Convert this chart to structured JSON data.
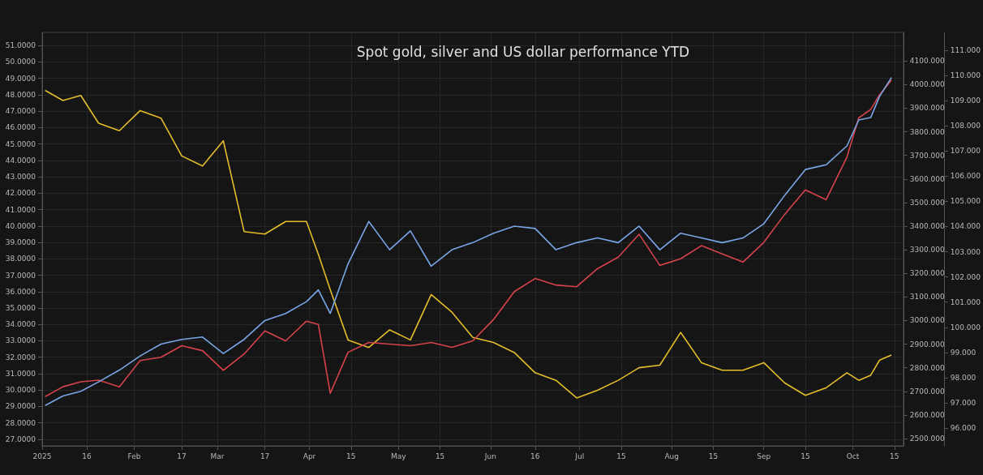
{
  "chart_data": {
    "type": "line",
    "title": "Spot gold, silver and US dollar performance YTD",
    "grid": true,
    "x": [
      "2025-01-02",
      "2025-01-08",
      "2025-01-14",
      "2025-01-20",
      "2025-01-27",
      "2025-02-03",
      "2025-02-10",
      "2025-02-17",
      "2025-02-24",
      "2025-03-03",
      "2025-03-10",
      "2025-03-17",
      "2025-03-24",
      "2025-03-31",
      "2025-04-04",
      "2025-04-08",
      "2025-04-14",
      "2025-04-21",
      "2025-04-28",
      "2025-05-05",
      "2025-05-12",
      "2025-05-19",
      "2025-05-26",
      "2025-06-02",
      "2025-06-09",
      "2025-06-16",
      "2025-06-23",
      "2025-06-30",
      "2025-07-07",
      "2025-07-14",
      "2025-07-21",
      "2025-07-28",
      "2025-08-04",
      "2025-08-11",
      "2025-08-18",
      "2025-08-25",
      "2025-09-01",
      "2025-09-08",
      "2025-09-15",
      "2025-09-22",
      "2025-09-29",
      "2025-10-03",
      "2025-10-07",
      "2025-10-10",
      "2025-10-14"
    ],
    "xlim": [
      "2025-01-01",
      "2025-10-18"
    ],
    "xticks": [
      {
        "value": "2025-01-01",
        "label": "2025"
      },
      {
        "value": "2025-01-16",
        "label": "16"
      },
      {
        "value": "2025-02-01",
        "label": "Feb"
      },
      {
        "value": "2025-02-17",
        "label": "17"
      },
      {
        "value": "2025-03-01",
        "label": "Mar"
      },
      {
        "value": "2025-03-17",
        "label": "17"
      },
      {
        "value": "2025-04-01",
        "label": "Apr"
      },
      {
        "value": "2025-04-15",
        "label": "15"
      },
      {
        "value": "2025-05-01",
        "label": "May"
      },
      {
        "value": "2025-05-15",
        "label": "15"
      },
      {
        "value": "2025-06-01",
        "label": "Jun"
      },
      {
        "value": "2025-06-16",
        "label": "16"
      },
      {
        "value": "2025-07-01",
        "label": "Jul"
      },
      {
        "value": "2025-07-15",
        "label": "15"
      },
      {
        "value": "2025-08-01",
        "label": "Aug"
      },
      {
        "value": "2025-08-15",
        "label": "15"
      },
      {
        "value": "2025-09-01",
        "label": "Sep"
      },
      {
        "value": "2025-09-15",
        "label": "15"
      },
      {
        "value": "2025-10-01",
        "label": "Oct"
      },
      {
        "value": "2025-10-15",
        "label": "15"
      }
    ],
    "ylim": [
      26.6,
      51.8
    ],
    "yticks": [
      {
        "value": 27,
        "label": "27.0000"
      },
      {
        "value": 28,
        "label": "28.0000"
      },
      {
        "value": 29,
        "label": "29.0000"
      },
      {
        "value": 30,
        "label": "30.0000"
      },
      {
        "value": 31,
        "label": "31.0000"
      },
      {
        "value": 32,
        "label": "32.0000"
      },
      {
        "value": 33,
        "label": "33.0000"
      },
      {
        "value": 34,
        "label": "34.0000"
      },
      {
        "value": 35,
        "label": "35.0000"
      },
      {
        "value": 36,
        "label": "36.0000"
      },
      {
        "value": 37,
        "label": "37.0000"
      },
      {
        "value": 38,
        "label": "38.0000"
      },
      {
        "value": 39,
        "label": "39.0000"
      },
      {
        "value": 40,
        "label": "40.0000"
      },
      {
        "value": 41,
        "label": "41.0000"
      },
      {
        "value": 42,
        "label": "42.0000"
      },
      {
        "value": 43,
        "label": "43.0000"
      },
      {
        "value": 44,
        "label": "44.0000"
      },
      {
        "value": 45,
        "label": "45.0000"
      },
      {
        "value": 46,
        "label": "46.0000"
      },
      {
        "value": 47,
        "label": "47.0000"
      },
      {
        "value": 48,
        "label": "48.0000"
      },
      {
        "value": 49,
        "label": "49.0000"
      },
      {
        "value": 50,
        "label": "50.0000"
      },
      {
        "value": 51,
        "label": "51.0000"
      }
    ],
    "y2lim": [
      2469,
      4221
    ],
    "y2ticks": [
      {
        "value": 2500,
        "label": "2500.000"
      },
      {
        "value": 2600,
        "label": "2600.000"
      },
      {
        "value": 2700,
        "label": "2700.000"
      },
      {
        "value": 2800,
        "label": "2800.000"
      },
      {
        "value": 2900,
        "label": "2900.000"
      },
      {
        "value": 3000,
        "label": "3000.000"
      },
      {
        "value": 3100,
        "label": "3100.000"
      },
      {
        "value": 3200,
        "label": "3200.000"
      },
      {
        "value": 3300,
        "label": "3300.000"
      },
      {
        "value": 3400,
        "label": "3400.000"
      },
      {
        "value": 3500,
        "label": "3500.000"
      },
      {
        "value": 3600,
        "label": "3600.000"
      },
      {
        "value": 3700,
        "label": "3700.000"
      },
      {
        "value": 3800,
        "label": "3800.000"
      },
      {
        "value": 3900,
        "label": "3900.000"
      },
      {
        "value": 4000,
        "label": "4000.000"
      },
      {
        "value": 4100,
        "label": "4100.000"
      }
    ],
    "y3lim": [
      95.3,
      111.7
    ],
    "y3ticks": [
      {
        "value": 96,
        "label": "96.000"
      },
      {
        "value": 97,
        "label": "97.000"
      },
      {
        "value": 98,
        "label": "98.000"
      },
      {
        "value": 99,
        "label": "99.000"
      },
      {
        "value": 100,
        "label": "100.000"
      },
      {
        "value": 101,
        "label": "101.000"
      },
      {
        "value": 102,
        "label": "102.000"
      },
      {
        "value": 103,
        "label": "103.000"
      },
      {
        "value": 104,
        "label": "104.000"
      },
      {
        "value": 105,
        "label": "105.000"
      },
      {
        "value": 106,
        "label": "106.000"
      },
      {
        "value": 107,
        "label": "107.000"
      },
      {
        "value": 108,
        "label": "108.000"
      },
      {
        "value": 109,
        "label": "109.000"
      },
      {
        "value": 110,
        "label": "110.000"
      },
      {
        "value": 111,
        "label": "111.000"
      }
    ],
    "series": [
      {
        "color": "#e3bd2a",
        "axis": "y3",
        "values": [
          109.4,
          109.0,
          109.2,
          108.1,
          107.8,
          108.6,
          108.3,
          106.8,
          106.4,
          107.4,
          103.8,
          103.7,
          104.2,
          104.2,
          102.9,
          101.5,
          99.5,
          99.2,
          99.9,
          99.5,
          101.3,
          100.6,
          99.6,
          99.4,
          99.0,
          98.2,
          97.9,
          97.2,
          97.5,
          97.9,
          98.4,
          98.5,
          99.8,
          98.6,
          98.3,
          98.3,
          98.6,
          97.8,
          97.3,
          97.6,
          98.2,
          97.9,
          98.1,
          98.7,
          98.9
        ]
      },
      {
        "color": "#d6434c",
        "axis": "y",
        "values": [
          29.6,
          30.2,
          30.5,
          30.6,
          30.2,
          31.8,
          32.0,
          32.7,
          32.4,
          31.2,
          32.2,
          33.6,
          33.0,
          34.2,
          34.0,
          29.8,
          32.3,
          32.9,
          32.8,
          32.7,
          32.9,
          32.6,
          33.0,
          34.3,
          36.0,
          36.8,
          36.4,
          36.3,
          37.4,
          38.1,
          39.5,
          37.6,
          38.0,
          38.8,
          38.3,
          37.8,
          39.0,
          40.7,
          42.2,
          41.6,
          44.2,
          46.6,
          47.1,
          48.0,
          48.9
        ]
      },
      {
        "color": "#79a6e6",
        "axis": "y2",
        "values": [
          2640,
          2680,
          2700,
          2740,
          2790,
          2850,
          2900,
          2920,
          2930,
          2860,
          2920,
          3000,
          3030,
          3080,
          3130,
          3030,
          3240,
          3420,
          3300,
          3380,
          3230,
          3300,
          3330,
          3370,
          3400,
          3390,
          3300,
          3330,
          3350,
          3330,
          3400,
          3300,
          3370,
          3350,
          3330,
          3350,
          3410,
          3530,
          3640,
          3660,
          3740,
          3850,
          3860,
          3950,
          4030
        ]
      }
    ]
  }
}
